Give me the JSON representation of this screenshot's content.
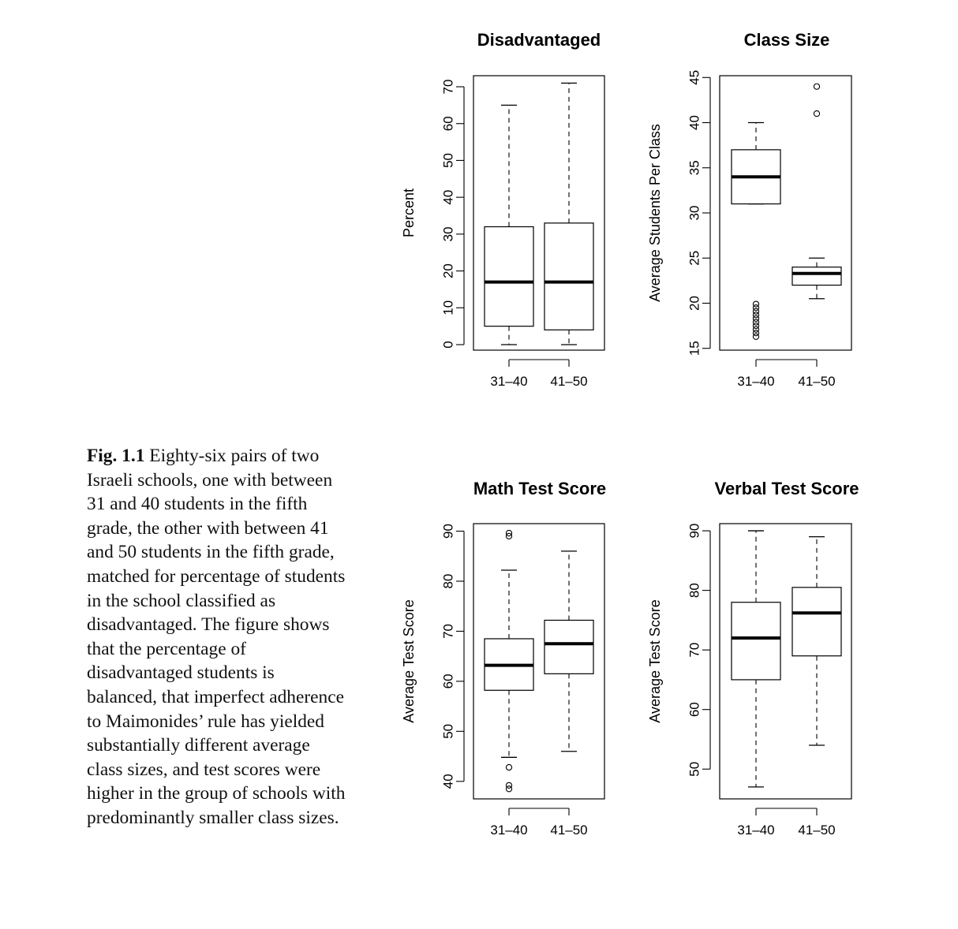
{
  "caption": {
    "label": "Fig. 1.1",
    "text": "Eighty-six pairs of two Israeli schools, one with between 31 and 40 students in the fifth grade, the other with between 41 and 50 students in the fifth grade, matched for percentage of students in the school classified as disadvantaged. The figure shows that the percentage of disadvantaged students is balanced, that imperfect adherence to Maimonides’ rule has yielded substantially different average class sizes, and test scores were higher in the group of schools with predominantly smaller class sizes."
  },
  "chart_data": [
    {
      "type": "boxplot",
      "title": "Disadvantaged",
      "ylabel": "Percent",
      "categories": [
        "31–40",
        "41–50"
      ],
      "yticks": [
        0,
        10,
        20,
        30,
        40,
        50,
        60,
        70
      ],
      "ylim": [
        -1.5,
        73
      ],
      "boxes": [
        {
          "whisker_low": 0,
          "q1": 5,
          "median": 17,
          "q3": 32,
          "whisker_high": 65,
          "outliers": []
        },
        {
          "whisker_low": 0,
          "q1": 4,
          "median": 17,
          "q3": 33,
          "whisker_high": 71,
          "outliers": []
        }
      ]
    },
    {
      "type": "boxplot",
      "title": "Class Size",
      "ylabel": "Average Students Per Class",
      "categories": [
        "31–40",
        "41–50"
      ],
      "yticks": [
        15,
        20,
        25,
        30,
        35,
        40,
        45
      ],
      "ylim": [
        14.8,
        45.2
      ],
      "boxes": [
        {
          "whisker_low": 31,
          "q1": 31,
          "median": 34,
          "q3": 37,
          "whisker_high": 40,
          "outliers": [
            16.3,
            16.7,
            17.1,
            17.5,
            17.9,
            18.3,
            18.7,
            19.1,
            19.5,
            19.9
          ]
        },
        {
          "whisker_low": 20.5,
          "q1": 22,
          "median": 23.3,
          "q3": 24,
          "whisker_high": 25,
          "outliers": [
            41,
            44
          ]
        }
      ]
    },
    {
      "type": "boxplot",
      "title": "Math Test Score",
      "ylabel": "Average Test Score",
      "categories": [
        "31–40",
        "41–50"
      ],
      "yticks": [
        40,
        50,
        60,
        70,
        80,
        90
      ],
      "ylim": [
        36.5,
        91.5
      ],
      "boxes": [
        {
          "whisker_low": 44.8,
          "q1": 58.2,
          "median": 63.2,
          "q3": 68.5,
          "whisker_high": 82.2,
          "outliers": [
            42.8,
            39.2,
            38.5,
            89,
            89.6
          ]
        },
        {
          "whisker_low": 46,
          "q1": 61.5,
          "median": 67.5,
          "q3": 72.2,
          "whisker_high": 86,
          "outliers": []
        }
      ]
    },
    {
      "type": "boxplot",
      "title": "Verbal Test Score",
      "ylabel": "Average Test Score",
      "categories": [
        "31–40",
        "41–50"
      ],
      "yticks": [
        50,
        60,
        70,
        80,
        90
      ],
      "ylim": [
        45,
        91.2
      ],
      "boxes": [
        {
          "whisker_low": 47,
          "q1": 65,
          "median": 72,
          "q3": 78,
          "whisker_high": 90,
          "outliers": []
        },
        {
          "whisker_low": 54,
          "q1": 69,
          "median": 76.2,
          "q3": 80.5,
          "whisker_high": 89,
          "outliers": []
        }
      ]
    }
  ]
}
